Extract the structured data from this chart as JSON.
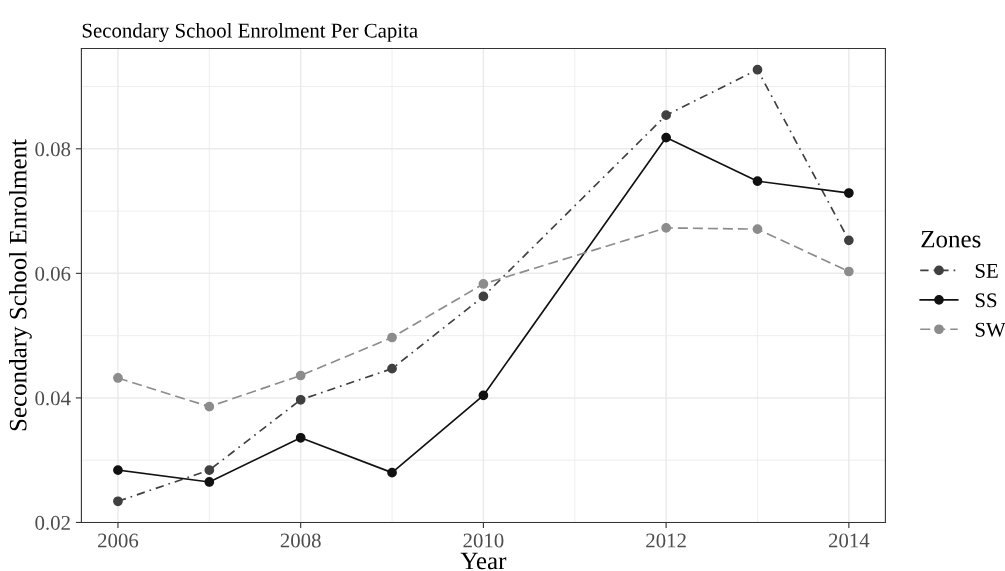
{
  "chart_data": {
    "type": "line",
    "title": "Secondary School Enrolment Per Capita",
    "xlabel": "Year",
    "ylabel": "Secondary School Enrolment",
    "legend_title": "Zones",
    "x": [
      2006,
      2007,
      2008,
      2009,
      2010,
      2012,
      2013,
      2014
    ],
    "series": [
      {
        "name": "SE",
        "color": "#404040",
        "line_style": "dashdot",
        "values": [
          0.0234,
          0.0284,
          0.0397,
          0.0447,
          0.0563,
          0.0854,
          0.0927,
          0.0653
        ]
      },
      {
        "name": "SS",
        "color": "#111111",
        "line_style": "solid",
        "values": [
          0.0284,
          0.0265,
          0.0336,
          0.028,
          0.0404,
          0.0818,
          0.0748,
          0.0729
        ]
      },
      {
        "name": "SW",
        "color": "#8c8c8c",
        "line_style": "dashed",
        "values": [
          0.0432,
          0.0386,
          0.0436,
          0.0497,
          0.0583,
          0.0673,
          0.0671,
          0.0603
        ]
      }
    ],
    "marker": "circle",
    "xlim": [
      2005.6,
      2014.4
    ],
    "ylim": [
      0.02,
      0.0961
    ],
    "xticks": [
      2006,
      2008,
      2010,
      2012,
      2014
    ],
    "yticks": [
      {
        "value": 0.02,
        "label": "0.02"
      },
      {
        "value": 0.04,
        "label": "0.04"
      },
      {
        "value": 0.06,
        "label": "0.06"
      },
      {
        "value": 0.08,
        "label": "0.08"
      }
    ],
    "grid": true,
    "legend": "right"
  }
}
